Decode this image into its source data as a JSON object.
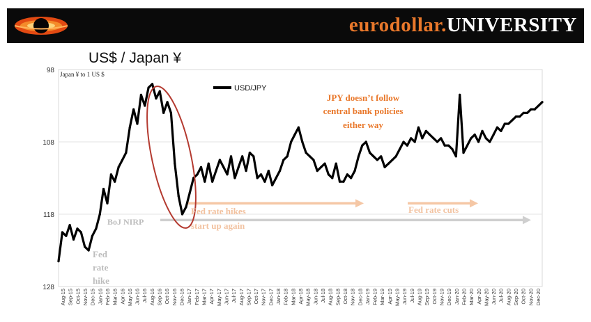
{
  "brand": {
    "part1": "eurodollar.",
    "part2": "UNIVERSITY",
    "logo_icon": "black-hole-logo-icon"
  },
  "slide_title": "US$ / Japan ¥",
  "colors": {
    "accent": "#e9782b",
    "series": "#000000",
    "highlight_ellipse": "#b43a30",
    "range_arrow": "#cfcfcf",
    "fed_text": "#f2c2a0",
    "fed_arrow": "#f5c7a5",
    "grey_text": "#bdbdbd"
  },
  "chart_data": {
    "type": "line",
    "title": "US$ / Japan ¥",
    "ylabel": "Japan ¥ to 1 US $",
    "xlabel": "",
    "y_inverted": true,
    "ylim": [
      98,
      128
    ],
    "yticks": [
      98,
      108,
      118,
      128
    ],
    "x_range": [
      2015.583,
      2020.958
    ],
    "grid": "horizontal",
    "legend": {
      "label": "USD/JPY",
      "position": "top-center"
    },
    "x_tick_labels": [
      "Aug-15",
      "Sep-15",
      "Oct-15",
      "Nov-15",
      "Dec-15",
      "Jan-16",
      "Feb-16",
      "Mar-16",
      "Apr-16",
      "May-16",
      "Jun-16",
      "Jul-16",
      "Aug-16",
      "Sep-16",
      "Oct-16",
      "Nov-16",
      "Dec-16",
      "Jan-17",
      "Feb-17",
      "Mar-17",
      "Apr-17",
      "May-17",
      "Jun-17",
      "Jul-17",
      "Aug-17",
      "Sep-17",
      "Oct-17",
      "Nov-17",
      "Dec-17",
      "Jan-18",
      "Feb-18",
      "Mar-18",
      "Apr-18",
      "May-18",
      "Jun-18",
      "Jul-18",
      "Aug-18",
      "Sep-18",
      "Oct-18",
      "Nov-18",
      "Dec-18",
      "Jan-19",
      "Feb-19",
      "Mar-19",
      "Apr-19",
      "May-19",
      "Jun-19",
      "Jul-19",
      "Aug-19",
      "Sep-19",
      "Oct-19",
      "Nov-19",
      "Dec-19",
      "Jan-20",
      "Feb-20",
      "Mar-20",
      "Apr-20",
      "May-20",
      "Jun-20",
      "Jul-20",
      "Aug-20",
      "Sep-20",
      "Oct-20",
      "Nov-20",
      "Dec-20"
    ],
    "series": [
      {
        "name": "USD/JPY",
        "x": [
          2015.583,
          2015.625,
          2015.667,
          2015.708,
          2015.75,
          2015.792,
          2015.833,
          2015.875,
          2015.917,
          2015.958,
          2016.0,
          2016.042,
          2016.083,
          2016.125,
          2016.167,
          2016.208,
          2016.25,
          2016.292,
          2016.333,
          2016.375,
          2016.417,
          2016.458,
          2016.5,
          2016.542,
          2016.583,
          2016.625,
          2016.667,
          2016.708,
          2016.75,
          2016.792,
          2016.833,
          2016.875,
          2016.917,
          2016.958,
          2017.0,
          2017.042,
          2017.083,
          2017.125,
          2017.167,
          2017.208,
          2017.25,
          2017.292,
          2017.333,
          2017.375,
          2017.417,
          2017.458,
          2017.5,
          2017.542,
          2017.583,
          2017.625,
          2017.667,
          2017.708,
          2017.75,
          2017.792,
          2017.833,
          2017.875,
          2017.917,
          2017.958,
          2018.0,
          2018.042,
          2018.083,
          2018.125,
          2018.167,
          2018.208,
          2018.25,
          2018.292,
          2018.333,
          2018.375,
          2018.417,
          2018.458,
          2018.5,
          2018.542,
          2018.583,
          2018.625,
          2018.667,
          2018.708,
          2018.75,
          2018.792,
          2018.833,
          2018.875,
          2018.917,
          2018.958,
          2019.0,
          2019.042,
          2019.083,
          2019.125,
          2019.167,
          2019.208,
          2019.25,
          2019.292,
          2019.333,
          2019.375,
          2019.417,
          2019.458,
          2019.5,
          2019.542,
          2019.583,
          2019.625,
          2019.667,
          2019.708,
          2019.75,
          2019.792,
          2019.833,
          2019.875,
          2019.917,
          2019.958,
          2020.0,
          2020.042,
          2020.083,
          2020.125,
          2020.167,
          2020.208,
          2020.25,
          2020.292,
          2020.333,
          2020.375,
          2020.417,
          2020.458,
          2020.5,
          2020.542,
          2020.583,
          2020.625,
          2020.667,
          2020.708,
          2020.75,
          2020.792,
          2020.833,
          2020.875,
          2020.917,
          2020.958
        ],
        "values": [
          124.5,
          120.5,
          121.0,
          119.5,
          121.5,
          120.0,
          120.5,
          122.5,
          123.0,
          121.0,
          120.0,
          118.0,
          114.5,
          116.5,
          112.5,
          113.5,
          111.5,
          110.5,
          109.5,
          106.0,
          103.5,
          105.5,
          101.5,
          103.0,
          100.5,
          100.0,
          102.0,
          101.0,
          104.0,
          102.5,
          104.0,
          111.0,
          115.5,
          118.0,
          117.0,
          115.0,
          113.0,
          112.5,
          111.5,
          113.5,
          111.0,
          113.5,
          112.0,
          110.5,
          111.5,
          112.5,
          110.0,
          113.0,
          111.5,
          110.0,
          112.0,
          109.5,
          110.0,
          113.0,
          112.5,
          113.5,
          112.0,
          114.0,
          113.0,
          112.0,
          110.5,
          110.0,
          108.0,
          107.0,
          106.0,
          108.0,
          109.5,
          110.0,
          110.5,
          112.0,
          111.5,
          111.0,
          112.5,
          113.0,
          111.0,
          113.5,
          113.5,
          112.5,
          113.0,
          112.0,
          110.0,
          108.5,
          108.0,
          109.5,
          110.0,
          110.5,
          110.0,
          111.5,
          111.0,
          110.5,
          110.0,
          109.0,
          108.0,
          108.5,
          107.5,
          108.0,
          106.0,
          107.5,
          106.5,
          107.0,
          107.5,
          108.0,
          107.5,
          108.5,
          108.5,
          109.0,
          110.0,
          101.5,
          109.5,
          108.5,
          107.5,
          107.0,
          108.0,
          106.5,
          107.5,
          108.0,
          107.0,
          106.0,
          106.5,
          105.5,
          105.5,
          105.0,
          104.5,
          104.5,
          104.0,
          104.0,
          103.5,
          103.5,
          103.0,
          102.5
        ]
      }
    ],
    "annotations": [
      {
        "id": "jpy-note",
        "lines": [
          "JPY doesn’t follow",
          "central bank policies",
          "either way"
        ]
      },
      {
        "id": "boj-nirp",
        "text": "BoJ NIRP"
      },
      {
        "id": "fed-rate-hike",
        "lines": [
          "Fed",
          "rate",
          "hike"
        ]
      },
      {
        "id": "fed-rate-hikes-again",
        "lines": [
          "Fed rate hikes",
          "start up again"
        ]
      },
      {
        "id": "fed-rate-cuts",
        "text": "Fed rate cuts"
      }
    ]
  }
}
